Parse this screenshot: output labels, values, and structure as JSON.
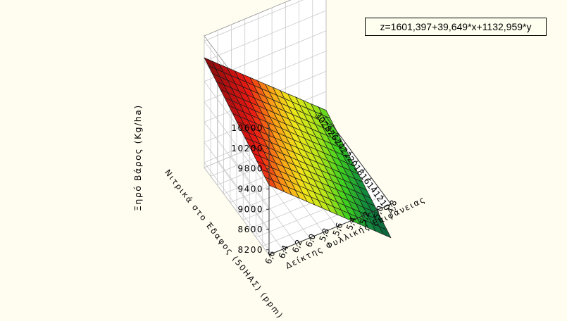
{
  "chart_data": {
    "type": "surface",
    "title": "",
    "equation": "z=1601,397+39,649*x+1132,959*y",
    "coefficients": {
      "intercept": 1601.397,
      "x": 39.649,
      "y": 1132.959
    },
    "xlabel": "Νιτρικά στο Έδαφος (50ΗΑΣ) (ppm)",
    "ylabel": "Δείκτης Φυλλικής Επιφάνειας",
    "zlabel": "Ξηρό Βάρος (Kg/ha)",
    "xlim": [
      10,
      30
    ],
    "ylim": [
      4.8,
      6.6
    ],
    "zlim": [
      8100,
      10700
    ],
    "x_ticks": [
      "30",
      "28",
      "26",
      "24",
      "22",
      "20",
      "18",
      "16",
      "14",
      "12",
      "10"
    ],
    "y_ticks": [
      "4,8",
      "5,0",
      "5,2",
      "5,4",
      "5,6",
      "5,8",
      "6,0",
      "6,2",
      "6,4",
      "6,6"
    ],
    "z_ticks": [
      "8200",
      "8600",
      "9000",
      "9400",
      "9800",
      "10200",
      "10600"
    ],
    "grid": true,
    "colormap": [
      "#0b5a3c",
      "#128a3c",
      "#3fd11f",
      "#b8e61a",
      "#f0e61a",
      "#fa9a16",
      "#ea1a12",
      "#b81010",
      "#7e0b0b"
    ]
  }
}
